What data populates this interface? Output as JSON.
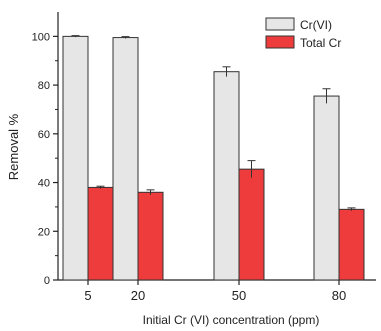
{
  "chart_data": {
    "type": "bar",
    "xlabel": "Initial Cr (VI) concentration (ppm)",
    "ylabel": "Removal %",
    "categories": [
      "5",
      "20",
      "50",
      "80"
    ],
    "x_positions": [
      5,
      20,
      50,
      80
    ],
    "ylim": [
      0,
      110
    ],
    "yticks": [
      0,
      20,
      40,
      60,
      80,
      100
    ],
    "legend_position": "top-right",
    "grid": false,
    "series": [
      {
        "name": "Cr(VI)",
        "color": "#e6e6e6",
        "values": [
          100,
          99.5,
          85.5,
          75.5
        ],
        "errors": [
          0.3,
          0.4,
          2.0,
          3.0
        ]
      },
      {
        "name": "Total Cr",
        "color": "#ee3b3b",
        "values": [
          38,
          36,
          45.5,
          29
        ],
        "errors": [
          0.5,
          1.0,
          3.5,
          0.6
        ]
      }
    ]
  }
}
